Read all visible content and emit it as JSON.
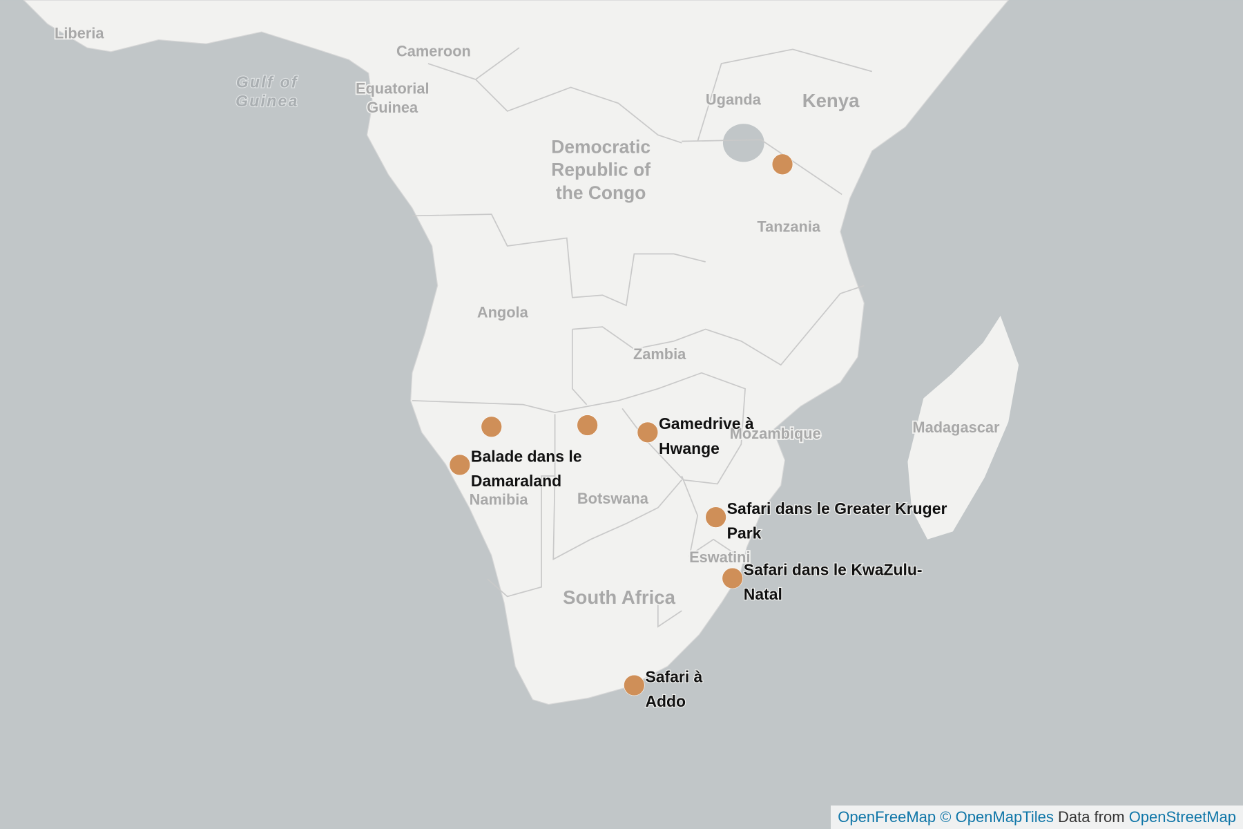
{
  "country_labels": [
    {
      "lines": [
        "Liberia"
      ]
    },
    {
      "lines": [
        "Cameroon"
      ]
    },
    {
      "lines": [
        "Equatorial",
        "Guinea"
      ]
    },
    {
      "lines": [
        "Uganda"
      ]
    },
    {
      "lines": [
        "Kenya"
      ]
    },
    {
      "lines": [
        "Democratic",
        "Republic of",
        "the Congo"
      ]
    },
    {
      "lines": [
        "Tanzania"
      ]
    },
    {
      "lines": [
        "Angola"
      ]
    },
    {
      "lines": [
        "Zambia"
      ]
    },
    {
      "lines": [
        "Mozambique"
      ]
    },
    {
      "lines": [
        "Madagascar"
      ]
    },
    {
      "lines": [
        "Namibia"
      ]
    },
    {
      "lines": [
        "Botswana"
      ]
    },
    {
      "lines": [
        "Eswatini"
      ]
    },
    {
      "lines": [
        "South Africa"
      ]
    }
  ],
  "sea_labels": [
    {
      "lines": [
        "Gulf of",
        "Guinea"
      ]
    }
  ],
  "markers": [
    {
      "lines": [
        "Gamedrive à",
        "Hwange"
      ]
    },
    {
      "lines": [
        "Balade dans le",
        "Damaraland"
      ]
    },
    {
      "lines": [
        "Safari dans le Greater Kruger",
        "Park"
      ]
    },
    {
      "lines": [
        "Safari dans le KwaZulu-",
        "Natal"
      ]
    },
    {
      "lines": [
        "Safari à",
        "Addo"
      ]
    }
  ],
  "attribution": [
    "OpenFreeMap",
    "© OpenMapTiles",
    "Data from",
    "OpenStreetMap"
  ]
}
